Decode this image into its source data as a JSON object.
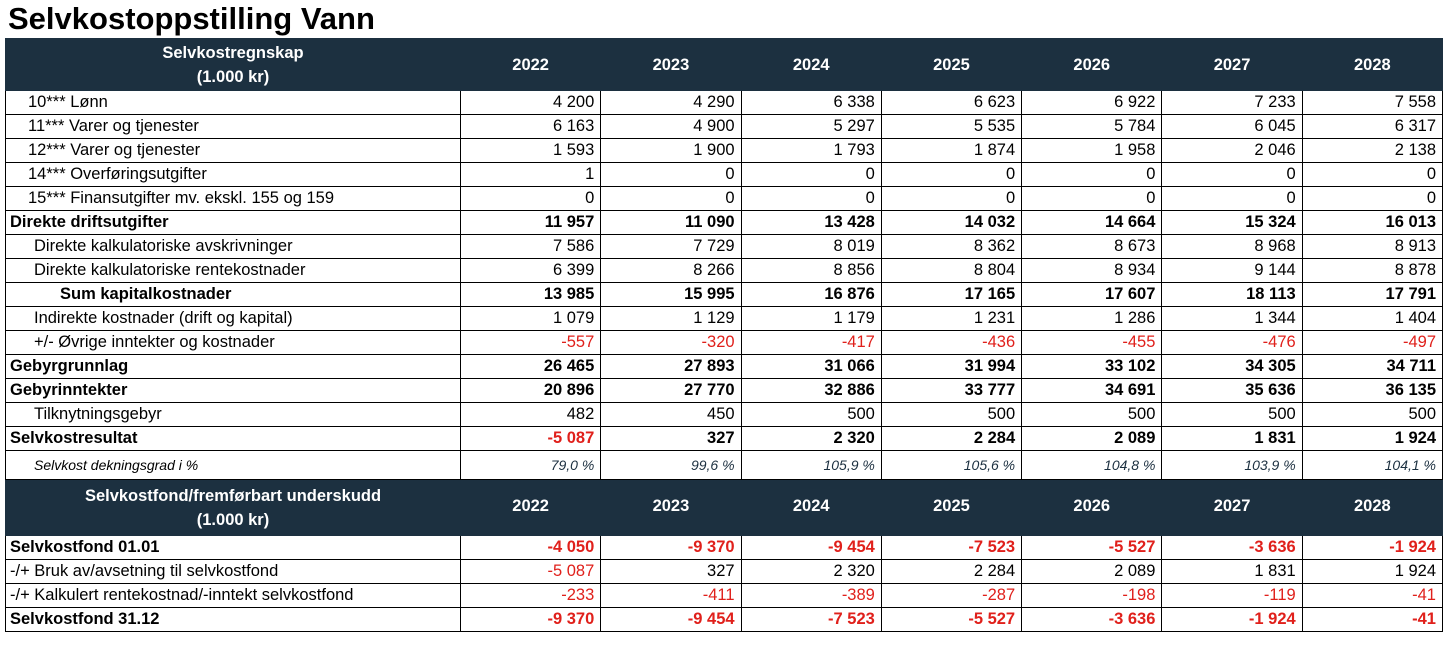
{
  "title": "Selvkostoppstilling Vann",
  "sections": [
    {
      "header": {
        "label": [
          "Selvkostregnskap",
          "(1.000 kr)"
        ],
        "years": [
          "2022",
          "2023",
          "2024",
          "2025",
          "2026",
          "2027",
          "2028"
        ]
      },
      "rows": [
        {
          "label": "10*** Lønn",
          "values": [
            "4 200",
            "4 290",
            "6 338",
            "6 623",
            "6 922",
            "7 233",
            "7 558"
          ]
        },
        {
          "label": "11*** Varer og tjenester",
          "values": [
            "6 163",
            "4 900",
            "5 297",
            "5 535",
            "5 784",
            "6 045",
            "6 317"
          ]
        },
        {
          "label": "12*** Varer og tjenester",
          "values": [
            "1 593",
            "1 900",
            "1 793",
            "1 874",
            "1 958",
            "2 046",
            "2 138"
          ]
        },
        {
          "label": "14*** Overføringsutgifter",
          "values": [
            "1",
            "0",
            "0",
            "0",
            "0",
            "0",
            "0"
          ]
        },
        {
          "label": "15*** Finansutgifter mv. ekskl. 155 og 159",
          "values": [
            "0",
            "0",
            "0",
            "0",
            "0",
            "0",
            "0"
          ]
        },
        {
          "label": "Direkte driftsutgifter",
          "values": [
            "11 957",
            "11 090",
            "13 428",
            "14 032",
            "14 664",
            "15 324",
            "16 013"
          ]
        },
        {
          "label": "Direkte kalkulatoriske avskrivninger",
          "values": [
            "7 586",
            "7 729",
            "8 019",
            "8 362",
            "8 673",
            "8 968",
            "8 913"
          ]
        },
        {
          "label": "Direkte kalkulatoriske rentekostnader",
          "values": [
            "6 399",
            "8 266",
            "8 856",
            "8 804",
            "8 934",
            "9 144",
            "8 878"
          ]
        },
        {
          "label": "Sum kapitalkostnader",
          "values": [
            "13 985",
            "15 995",
            "16 876",
            "17 165",
            "17 607",
            "18 113",
            "17 791"
          ]
        },
        {
          "label": "Indirekte kostnader (drift og kapital)",
          "values": [
            "1 079",
            "1 129",
            "1 179",
            "1 231",
            "1 286",
            "1 344",
            "1 404"
          ]
        },
        {
          "label": "+/- Øvrige inntekter og kostnader",
          "values": [
            "-557",
            "-320",
            "-417",
            "-436",
            "-455",
            "-476",
            "-497"
          ]
        },
        {
          "label": "Gebyrgrunnlag",
          "values": [
            "26 465",
            "27 893",
            "31 066",
            "31 994",
            "33 102",
            "34 305",
            "34 711"
          ]
        },
        {
          "label": "Gebyrinntekter",
          "values": [
            "20 896",
            "27 770",
            "32 886",
            "33 777",
            "34 691",
            "35 636",
            "36 135"
          ]
        },
        {
          "label": "Tilknytningsgebyr",
          "values": [
            "482",
            "450",
            "500",
            "500",
            "500",
            "500",
            "500"
          ]
        },
        {
          "label": "Selvkostresultat",
          "values": [
            "-5 087",
            "327",
            "2 320",
            "2 284",
            "2 089",
            "1 831",
            "1 924"
          ]
        },
        {
          "label": "Selvkost dekningsgrad i %",
          "values": [
            "79,0 %",
            "99,6 %",
            "105,9 %",
            "105,6 %",
            "104,8 %",
            "103,9 %",
            "104,1 %"
          ]
        }
      ]
    },
    {
      "header": {
        "label": [
          "Selvkostfond/fremførbart underskudd",
          "(1.000 kr)"
        ],
        "years": [
          "2022",
          "2023",
          "2024",
          "2025",
          "2026",
          "2027",
          "2028"
        ]
      },
      "rows": [
        {
          "label": "Selvkostfond 01.01",
          "values": [
            "-4 050",
            "-9 370",
            "-9 454",
            "-7 523",
            "-5 527",
            "-3 636",
            "-1 924"
          ]
        },
        {
          "label": "-/+ Bruk av/avsetning til selvkostfond",
          "values": [
            "-5 087",
            "327",
            "2 320",
            "2 284",
            "2 089",
            "1 831",
            "1 924"
          ]
        },
        {
          "label": "-/+ Kalkulert rentekostnad/-inntekt selvkostfond",
          "values": [
            "-233",
            "-411",
            "-389",
            "-287",
            "-198",
            "-119",
            "-41"
          ]
        },
        {
          "label": "Selvkostfond 31.12",
          "values": [
            "-9 370",
            "-9 454",
            "-7 523",
            "-5 527",
            "-3 636",
            "-1 924",
            "-41"
          ]
        }
      ]
    }
  ]
}
